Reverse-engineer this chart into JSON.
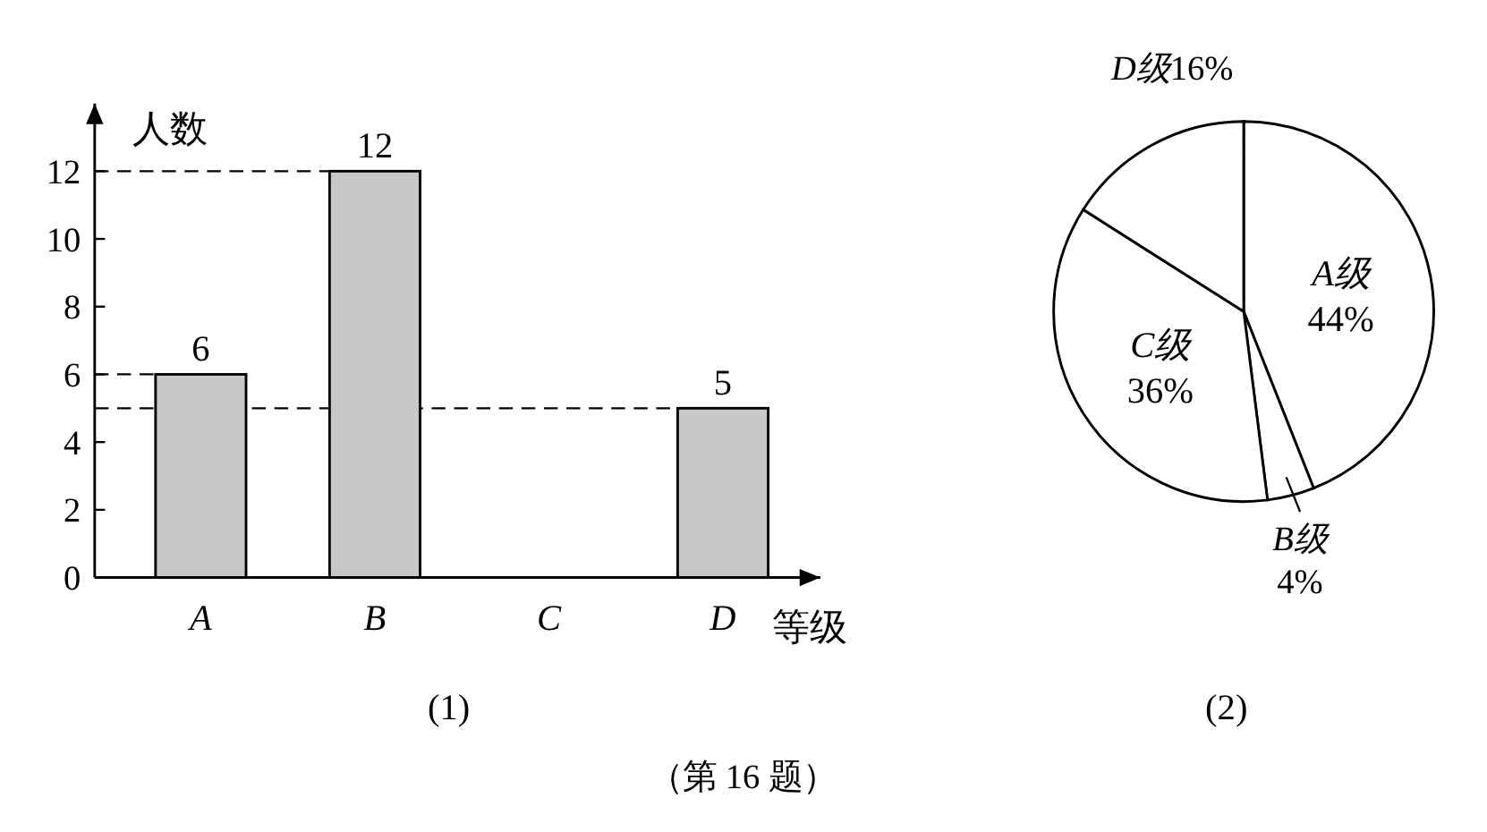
{
  "chart_data": [
    {
      "type": "bar",
      "title": "(1)",
      "xlabel": "等级",
      "ylabel": "人数",
      "categories": [
        "A",
        "B",
        "C",
        "D"
      ],
      "values": [
        6,
        12,
        null,
        5
      ],
      "color": "#c8c8c8",
      "ylim": [
        0,
        14
      ],
      "yticks": [
        0,
        2,
        4,
        6,
        8,
        10,
        12
      ],
      "grid": false,
      "data_labels": true,
      "ref_lines": [
        {
          "axis": "y",
          "value": 12,
          "line_style": "dashed"
        },
        {
          "axis": "y",
          "value": 6,
          "line_style": "dashed"
        },
        {
          "axis": "y",
          "value": 5,
          "line_style": "dashed"
        }
      ]
    },
    {
      "type": "pie",
      "title": "(2)",
      "categories": [
        "A级",
        "B级",
        "C级",
        "D级"
      ],
      "values": [
        44,
        4,
        36,
        16
      ],
      "colors": [
        "#ffffff",
        "#ffffff",
        "#ffffff",
        "#ffffff"
      ],
      "value_labels": [
        "44%",
        "4%",
        "36%",
        "16%"
      ],
      "annotations": [
        "（第 16 题）"
      ]
    }
  ]
}
